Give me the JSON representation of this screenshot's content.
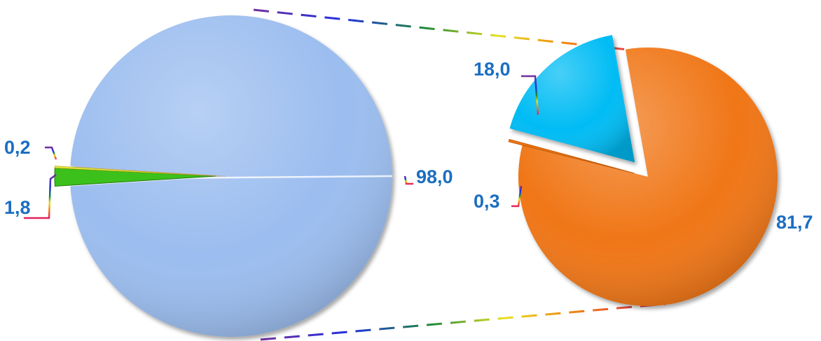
{
  "chart_data": [
    {
      "type": "pie",
      "title": "",
      "slices": [
        {
          "label": "98,0",
          "value": 98.0,
          "color": "#9bbdef"
        },
        {
          "label": "1,8",
          "value": 1.8,
          "color": "#3cc01c"
        },
        {
          "label": "0,2",
          "value": 0.2,
          "color": "#e3e640"
        }
      ]
    },
    {
      "type": "pie",
      "title": "",
      "slices": [
        {
          "label": "81,7",
          "value": 81.7,
          "color": "#f07614"
        },
        {
          "label": "0,3",
          "value": 0.3,
          "color": "#f07614"
        },
        {
          "label": "18,0",
          "value": 18.0,
          "color": "#04bcf4"
        }
      ]
    }
  ],
  "colors": {
    "label_text": "#1b6ec2",
    "connector_gradient": [
      "#7030a0",
      "#2030e0",
      "#1e8a3a",
      "#e8e020",
      "#f08010",
      "#e02060"
    ]
  }
}
